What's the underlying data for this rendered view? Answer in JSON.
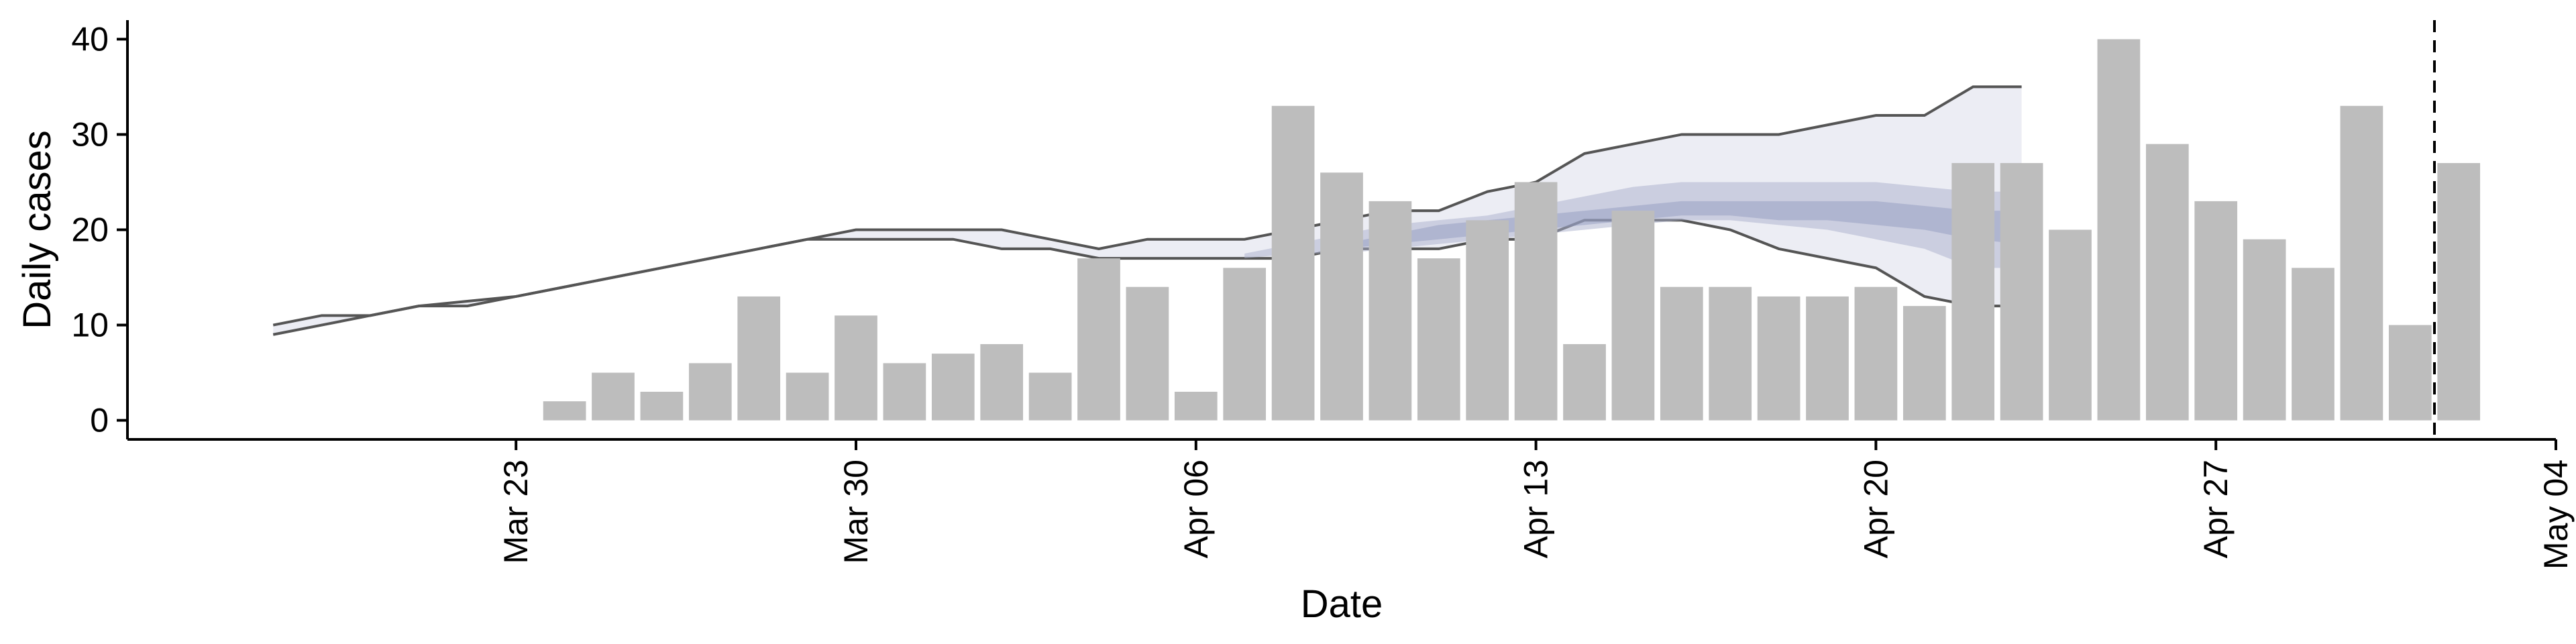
{
  "chart_data": {
    "type": "bar",
    "xlabel": "Date",
    "ylabel": "Daily cases",
    "xlim": [
      "2020-03-15",
      "2020-05-04"
    ],
    "ylim": [
      -2,
      42
    ],
    "x_ticks": [
      {
        "date": "2020-03-23",
        "label": "Mar 23"
      },
      {
        "date": "2020-03-30",
        "label": "Mar 30"
      },
      {
        "date": "2020-04-06",
        "label": "Apr 06"
      },
      {
        "date": "2020-04-13",
        "label": "Apr 13"
      },
      {
        "date": "2020-04-20",
        "label": "Apr 20"
      },
      {
        "date": "2020-04-27",
        "label": "Apr 27"
      },
      {
        "date": "2020-05-04",
        "label": "May 04"
      }
    ],
    "y_ticks": [
      0,
      10,
      20,
      30,
      40
    ],
    "bars": {
      "dates": [
        "2020-03-24",
        "2020-03-25",
        "2020-03-26",
        "2020-03-27",
        "2020-03-28",
        "2020-03-29",
        "2020-03-30",
        "2020-03-31",
        "2020-04-01",
        "2020-04-02",
        "2020-04-03",
        "2020-04-04",
        "2020-04-05",
        "2020-04-06",
        "2020-04-07",
        "2020-04-08",
        "2020-04-09",
        "2020-04-10",
        "2020-04-11",
        "2020-04-12",
        "2020-04-13",
        "2020-04-14",
        "2020-04-15",
        "2020-04-16",
        "2020-04-17",
        "2020-04-18",
        "2020-04-19",
        "2020-04-20",
        "2020-04-21",
        "2020-04-22",
        "2020-04-23",
        "2020-04-24",
        "2020-04-25",
        "2020-04-26",
        "2020-04-27",
        "2020-04-28",
        "2020-04-29",
        "2020-04-30",
        "2020-05-01",
        "2020-05-02"
      ],
      "values": [
        2,
        5,
        3,
        6,
        13,
        5,
        11,
        6,
        7,
        8,
        5,
        17,
        14,
        3,
        16,
        33,
        26,
        23,
        17,
        21,
        25,
        8,
        22,
        14,
        14,
        13,
        13,
        14,
        12,
        27,
        27,
        20,
        40,
        29,
        23,
        19,
        16,
        33,
        10,
        27
      ],
      "color": "#bdbdbd"
    },
    "band": {
      "dates": [
        "2020-03-18",
        "2020-03-19",
        "2020-03-20",
        "2020-03-21",
        "2020-03-22",
        "2020-03-23",
        "2020-03-24",
        "2020-03-25",
        "2020-03-26",
        "2020-03-27",
        "2020-03-28",
        "2020-03-29",
        "2020-03-30",
        "2020-03-31",
        "2020-04-01",
        "2020-04-02",
        "2020-04-03",
        "2020-04-04",
        "2020-04-05",
        "2020-04-06",
        "2020-04-07",
        "2020-04-08",
        "2020-04-09",
        "2020-04-10",
        "2020-04-11",
        "2020-04-12",
        "2020-04-13",
        "2020-04-14",
        "2020-04-15",
        "2020-04-16",
        "2020-04-17",
        "2020-04-18",
        "2020-04-19",
        "2020-04-20",
        "2020-04-21",
        "2020-04-22",
        "2020-04-23"
      ],
      "upper": [
        10,
        11,
        11,
        12,
        12.5,
        13,
        14,
        15,
        16,
        17,
        18,
        19,
        20,
        20,
        20,
        20,
        19,
        18,
        19,
        19,
        19,
        20,
        21,
        22,
        22,
        24,
        25,
        28,
        29,
        30,
        30,
        30,
        31,
        32,
        32,
        35,
        35
      ],
      "lower": [
        9,
        10,
        11,
        12,
        12,
        13,
        14,
        15,
        16,
        17,
        18,
        19,
        19,
        19,
        19,
        18,
        18,
        17,
        17,
        17,
        17,
        17,
        18,
        18,
        18,
        19,
        19,
        21,
        21,
        21,
        20,
        18,
        17,
        16,
        13,
        12,
        12
      ],
      "line_color": "#555555",
      "fill_color": "#dfe1ec"
    },
    "forecast_bands": [
      {
        "dates": [
          "2020-04-07",
          "2020-04-08",
          "2020-04-09",
          "2020-04-10",
          "2020-04-11",
          "2020-04-12",
          "2020-04-13",
          "2020-04-14",
          "2020-04-15",
          "2020-04-16",
          "2020-04-17",
          "2020-04-18",
          "2020-04-19",
          "2020-04-20",
          "2020-04-21",
          "2020-04-22",
          "2020-04-23"
        ],
        "upper": [
          17.5,
          18.5,
          19.5,
          20.5,
          21,
          21.5,
          22.5,
          23.5,
          24.5,
          25,
          25,
          25,
          25,
          25,
          24.5,
          24,
          24
        ],
        "lower": [
          17,
          17.5,
          17.5,
          18,
          18.5,
          19,
          19.5,
          20,
          20.5,
          21,
          21,
          20.5,
          20,
          19,
          18,
          16,
          16
        ],
        "color": "#a9b0cc",
        "opacity": 0.5
      },
      {
        "dates": [
          "2020-04-09",
          "2020-04-10",
          "2020-04-11",
          "2020-04-12",
          "2020-04-13",
          "2020-04-14",
          "2020-04-15",
          "2020-04-16",
          "2020-04-17",
          "2020-04-18",
          "2020-04-19",
          "2020-04-20",
          "2020-04-21",
          "2020-04-22",
          "2020-04-23"
        ],
        "upper": [
          18.5,
          19.5,
          20.5,
          21,
          21.5,
          22,
          22.5,
          23,
          23,
          23,
          23,
          23,
          22.5,
          22,
          22
        ],
        "lower": [
          18,
          18.5,
          19,
          19.5,
          20,
          20.5,
          21,
          21.5,
          21.5,
          21,
          21,
          20.5,
          20,
          19,
          18.5
        ],
        "color": "#8e97bd",
        "opacity": 0.45
      }
    ],
    "vertical_marker_date": "2020-05-01",
    "grid": false,
    "legend": "none"
  }
}
